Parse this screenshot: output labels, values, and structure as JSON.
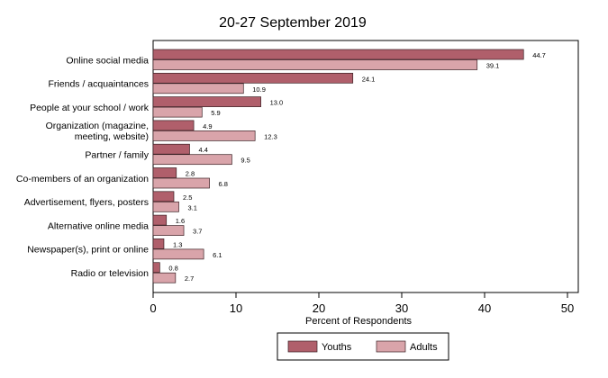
{
  "chart_data": {
    "type": "bar",
    "orientation": "horizontal",
    "title": "20-27 September 2019",
    "xlabel": "Percent of Respondents",
    "xlim": [
      0,
      50
    ],
    "xticks": [
      0,
      10,
      20,
      30,
      40,
      50
    ],
    "categories": [
      "Online social media",
      "Friends / acquaintances",
      "People at your school / work",
      [
        "Organization (magazine,",
        "meeting, website)"
      ],
      "Partner / family",
      "Co-members of an organization",
      "Advertisement, flyers, posters",
      "Alternative online media",
      "Newspaper(s), print or online",
      "Radio or television"
    ],
    "series": [
      {
        "name": "Youths",
        "color": "#b05f6b",
        "values": [
          44.7,
          24.1,
          13.0,
          4.9,
          4.4,
          2.8,
          2.5,
          1.6,
          1.3,
          0.8
        ]
      },
      {
        "name": "Adults",
        "color": "#d9a4aa",
        "values": [
          39.1,
          10.9,
          5.9,
          12.3,
          9.5,
          6.8,
          3.1,
          3.7,
          6.1,
          2.7
        ]
      }
    ],
    "legend": "bottom",
    "grid": false
  }
}
